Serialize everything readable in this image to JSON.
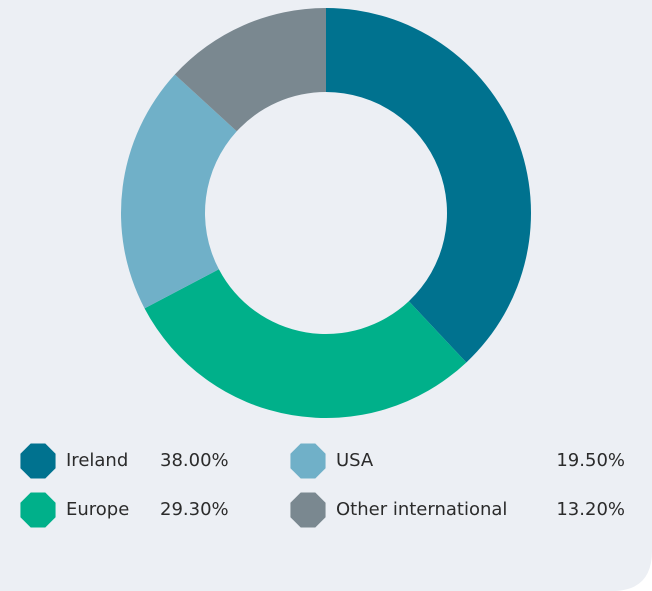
{
  "chart_data": {
    "type": "donut",
    "categories": [
      "Ireland",
      "Europe",
      "USA",
      "Other international"
    ],
    "values": [
      38,
      29.3,
      19.5,
      13.2
    ],
    "value_labels": [
      "38.00%",
      "29.30%",
      "19.50%",
      "13.20%"
    ],
    "colors": [
      "#00728f",
      "#00b08a",
      "#70b0c8",
      "#7a8890"
    ]
  }
}
